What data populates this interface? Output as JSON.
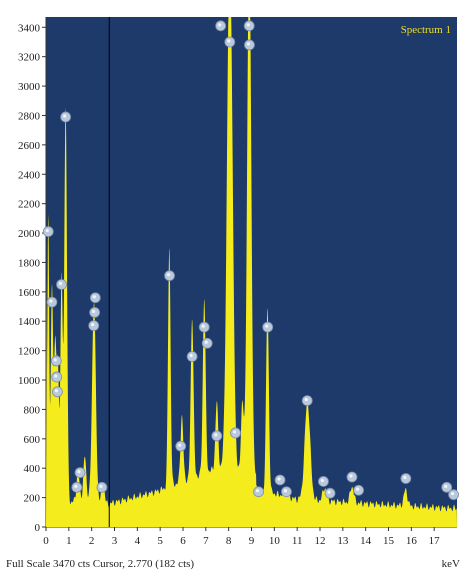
{
  "chart_data": {
    "type": "area",
    "legend": "Spectrum 1",
    "legend_position": "top-right",
    "xlabel": "keV",
    "xlim": [
      0,
      18
    ],
    "ylim": [
      0,
      3470
    ],
    "x_ticks": [
      0,
      1,
      2,
      3,
      4,
      5,
      6,
      7,
      8,
      9,
      10,
      11,
      12,
      13,
      14,
      15,
      16,
      17
    ],
    "y_ticks": [
      0,
      200,
      400,
      600,
      800,
      1000,
      1200,
      1400,
      1600,
      1800,
      2000,
      2200,
      2400,
      2600,
      2800,
      3000,
      3200,
      3400
    ],
    "cursor_kev": 2.77,
    "colors": {
      "background": "#1d3a6b",
      "spectrum": "#f5ec1e",
      "cursor": "#000000",
      "marker": "#b9c8dc"
    },
    "peaks": [
      {
        "kev": 0.1,
        "cts": 2000,
        "w": 0.04
      },
      {
        "kev": 0.26,
        "cts": 1500,
        "w": 0.05
      },
      {
        "kev": 0.4,
        "cts": 1100,
        "w": 0.05
      },
      {
        "kev": 0.52,
        "cts": 950,
        "w": 0.05
      },
      {
        "kev": 0.68,
        "cts": 1550,
        "w": 0.05
      },
      {
        "kev": 0.86,
        "cts": 2700,
        "w": 0.06
      },
      {
        "kev": 1.4,
        "cts": 200,
        "w": 0.06
      },
      {
        "kev": 1.7,
        "cts": 280,
        "w": 0.06
      },
      {
        "kev": 2.1,
        "cts": 1350,
        "w": 0.08
      },
      {
        "kev": 2.5,
        "cts": 150,
        "w": 0.06
      },
      {
        "kev": 5.4,
        "cts": 1630,
        "w": 0.055
      },
      {
        "kev": 5.95,
        "cts": 450,
        "w": 0.06
      },
      {
        "kev": 6.4,
        "cts": 1100,
        "w": 0.06
      },
      {
        "kev": 6.93,
        "cts": 1200,
        "w": 0.06
      },
      {
        "kev": 7.48,
        "cts": 450,
        "w": 0.06
      },
      {
        "kev": 8.05,
        "cts": 3600,
        "w": 0.12
      },
      {
        "kev": 8.6,
        "cts": 500,
        "w": 0.06
      },
      {
        "kev": 8.9,
        "cts": 3600,
        "w": 0.09
      },
      {
        "kev": 9.7,
        "cts": 1250,
        "w": 0.06
      },
      {
        "kev": 10.5,
        "cts": 70,
        "w": 0.08
      },
      {
        "kev": 11.45,
        "cts": 670,
        "w": 0.12
      },
      {
        "kev": 12.2,
        "cts": 90,
        "w": 0.08
      },
      {
        "kev": 13.4,
        "cts": 110,
        "w": 0.08
      },
      {
        "kev": 15.75,
        "cts": 110,
        "w": 0.08
      }
    ],
    "markers": [
      {
        "kev": 0.1,
        "cts": 2010
      },
      {
        "kev": 0.26,
        "cts": 1530
      },
      {
        "kev": 0.45,
        "cts": 1130
      },
      {
        "kev": 0.47,
        "cts": 1020
      },
      {
        "kev": 0.5,
        "cts": 920
      },
      {
        "kev": 0.68,
        "cts": 1650
      },
      {
        "kev": 0.86,
        "cts": 2790
      },
      {
        "kev": 1.35,
        "cts": 270
      },
      {
        "kev": 1.49,
        "cts": 370
      },
      {
        "kev": 2.09,
        "cts": 1370
      },
      {
        "kev": 2.13,
        "cts": 1460
      },
      {
        "kev": 2.16,
        "cts": 1560
      },
      {
        "kev": 2.45,
        "cts": 270
      },
      {
        "kev": 5.41,
        "cts": 1710
      },
      {
        "kev": 5.9,
        "cts": 550
      },
      {
        "kev": 6.4,
        "cts": 1160
      },
      {
        "kev": 6.93,
        "cts": 1360
      },
      {
        "kev": 7.06,
        "cts": 1250
      },
      {
        "kev": 7.48,
        "cts": 620
      },
      {
        "kev": 7.65,
        "cts": 3410
      },
      {
        "kev": 8.05,
        "cts": 3300
      },
      {
        "kev": 8.3,
        "cts": 640
      },
      {
        "kev": 8.9,
        "cts": 3410
      },
      {
        "kev": 8.91,
        "cts": 3280
      },
      {
        "kev": 9.31,
        "cts": 240
      },
      {
        "kev": 9.71,
        "cts": 1360
      },
      {
        "kev": 10.25,
        "cts": 320
      },
      {
        "kev": 10.53,
        "cts": 240
      },
      {
        "kev": 11.44,
        "cts": 860
      },
      {
        "kev": 12.15,
        "cts": 310
      },
      {
        "kev": 12.44,
        "cts": 230
      },
      {
        "kev": 13.4,
        "cts": 340
      },
      {
        "kev": 13.69,
        "cts": 250
      },
      {
        "kev": 15.76,
        "cts": 330
      },
      {
        "kev": 17.55,
        "cts": 270
      },
      {
        "kev": 17.85,
        "cts": 220
      }
    ]
  },
  "status_bar": {
    "text": "Full Scale 3470 cts Cursor, 2.770 (182 cts)",
    "unit_label": "keV"
  }
}
